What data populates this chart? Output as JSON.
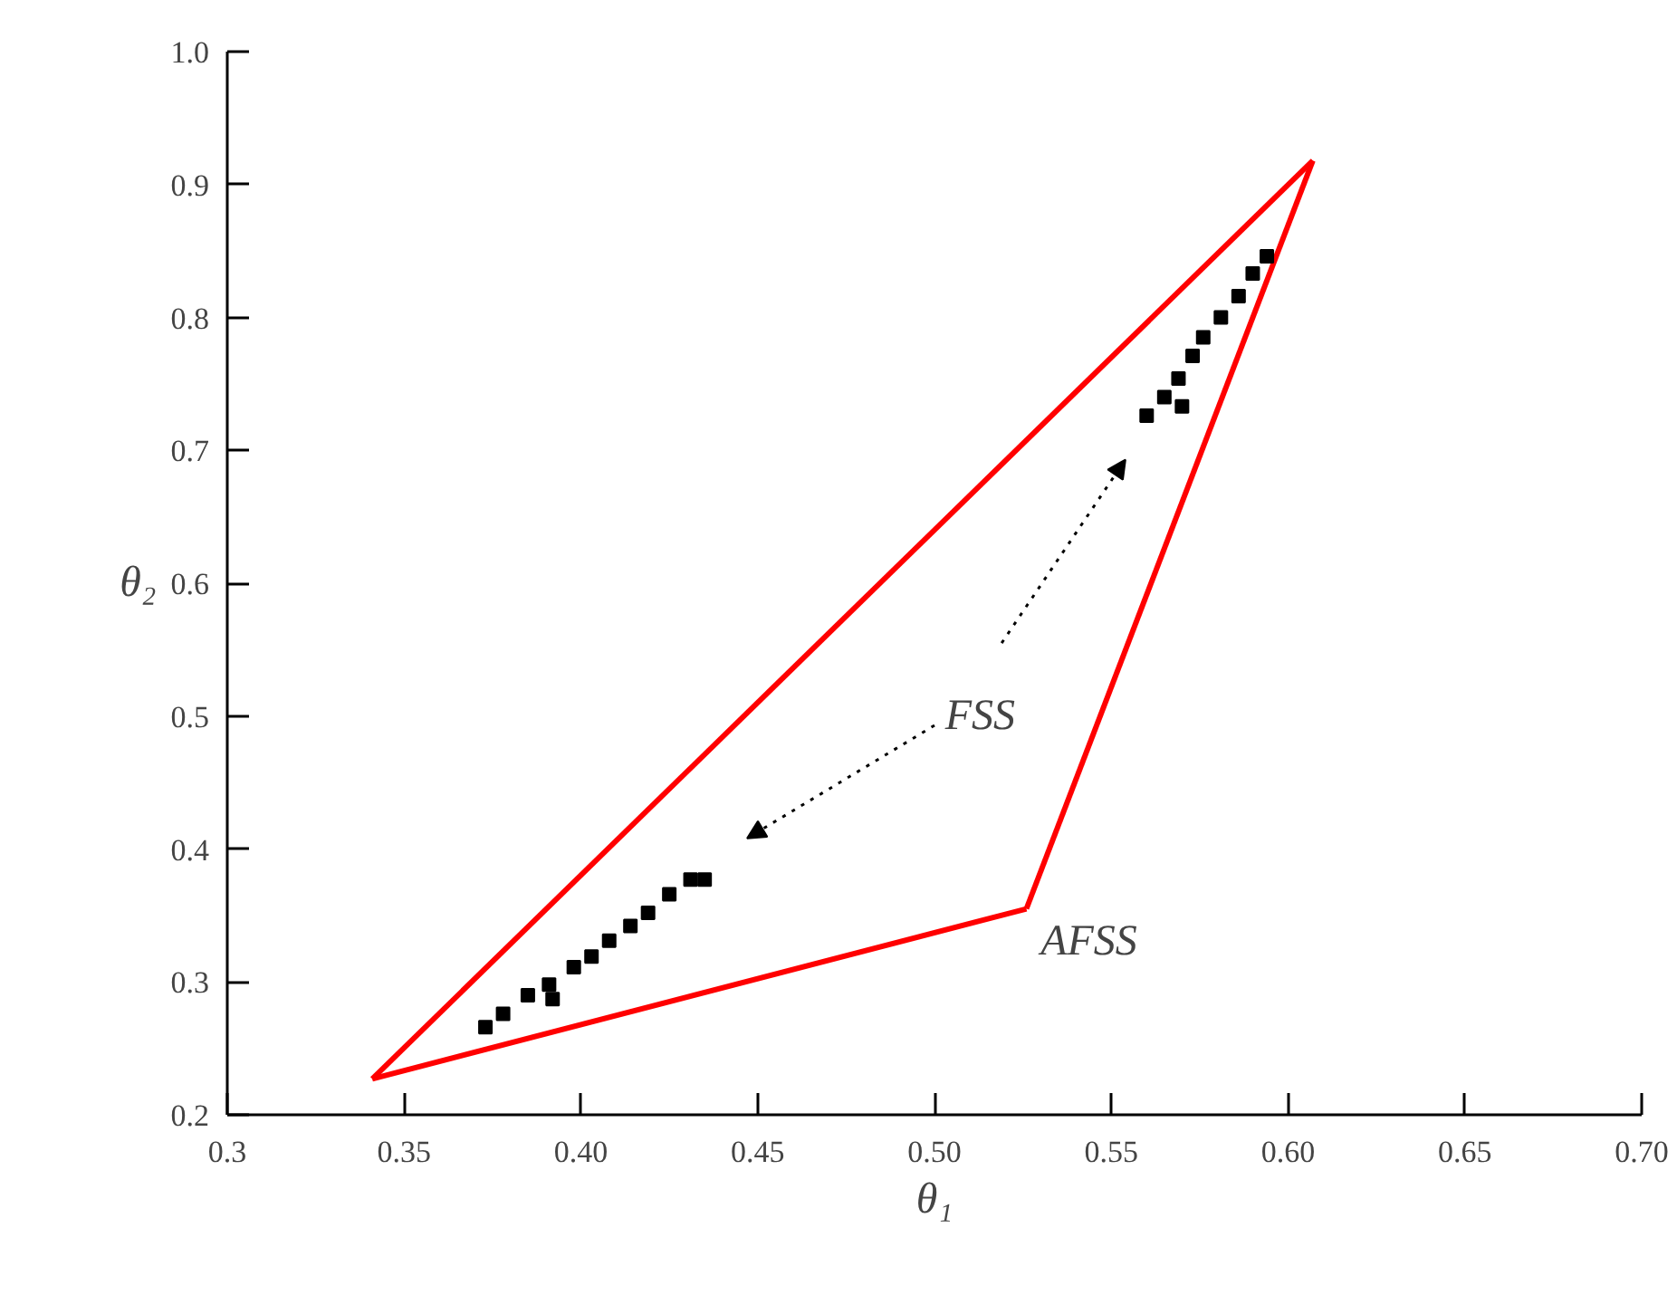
{
  "chart_data": {
    "type": "scatter",
    "xlabel": "θ₁",
    "ylabel": "θ₂",
    "xlim": [
      0.3,
      0.7
    ],
    "ylim": [
      0.2,
      1.0
    ],
    "xticks": [
      0.3,
      {
        "value": 0.35,
        "label": "0.35"
      },
      {
        "value": 0.4,
        "label": "0.40"
      },
      0.45,
      {
        "value": 0.5,
        "label": "0.50"
      },
      0.55,
      {
        "value": 0.6,
        "label": "0.60"
      },
      0.65,
      {
        "value": 0.7,
        "label": "0.70"
      }
    ],
    "yticks": [
      0.2,
      0.3,
      0.4,
      0.5,
      0.6,
      0.7,
      0.8,
      0.9,
      {
        "value": 1.0,
        "label": "1.0"
      }
    ],
    "grid": false,
    "marker": "square",
    "series": [
      {
        "type": "line",
        "marker": "none",
        "color": "#ff0000",
        "line_style": "solid",
        "x": [
          0.341,
          0.607
        ],
        "values": [
          0.227,
          0.918
        ]
      },
      {
        "type": "line",
        "marker": "none",
        "color": "#ff0000",
        "line_style": "solid",
        "x": [
          0.526,
          0.607
        ],
        "values": [
          0.355,
          0.918
        ]
      },
      {
        "type": "line",
        "marker": "none",
        "color": "#ff0000",
        "line_style": "solid",
        "x": [
          0.341,
          0.526
        ],
        "values": [
          0.227,
          0.355
        ]
      },
      {
        "color": "#000000",
        "x": [
          0.373,
          0.378,
          0.385,
          0.391,
          0.392,
          0.398,
          0.403,
          0.408,
          0.414,
          0.419,
          0.425,
          0.431,
          0.435,
          0.56,
          0.565,
          0.57,
          0.569,
          0.573,
          0.576,
          0.581,
          0.586,
          0.59,
          0.594
        ],
        "values": [
          0.266,
          0.276,
          0.29,
          0.298,
          0.287,
          0.311,
          0.319,
          0.331,
          0.342,
          0.352,
          0.366,
          0.377,
          0.377,
          0.726,
          0.74,
          0.733,
          0.754,
          0.771,
          0.785,
          0.8,
          0.816,
          0.833,
          0.846
        ]
      }
    ],
    "annotations": [
      "FSS",
      "AFSS"
    ]
  }
}
